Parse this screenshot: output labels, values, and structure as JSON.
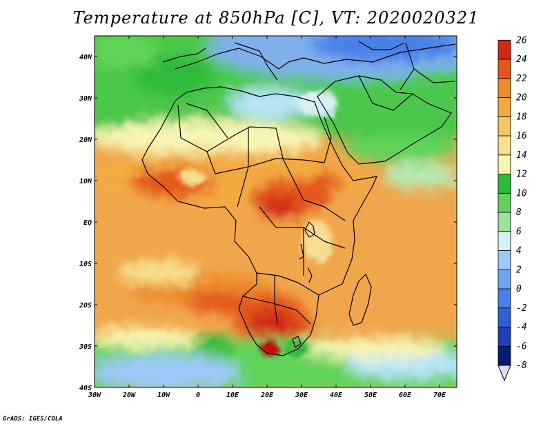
{
  "title": "Temperature at 850hPa [C], VT: 2020020321",
  "footer": "GrADS: IGES/COLA",
  "map": {
    "lon_range": [
      -30,
      75
    ],
    "lat_range": [
      -40,
      45
    ],
    "x_ticks": [
      {
        "value": -30,
        "label": "30W"
      },
      {
        "value": -20,
        "label": "20W"
      },
      {
        "value": -10,
        "label": "10W"
      },
      {
        "value": 0,
        "label": "0"
      },
      {
        "value": 10,
        "label": "10E"
      },
      {
        "value": 20,
        "label": "20E"
      },
      {
        "value": 30,
        "label": "30E"
      },
      {
        "value": 40,
        "label": "40E"
      },
      {
        "value": 50,
        "label": "50E"
      },
      {
        "value": 60,
        "label": "60E"
      },
      {
        "value": 70,
        "label": "70E"
      }
    ],
    "y_ticks": [
      {
        "value": 40,
        "label": "40N"
      },
      {
        "value": 30,
        "label": "30N"
      },
      {
        "value": 20,
        "label": "20N"
      },
      {
        "value": 10,
        "label": "10N"
      },
      {
        "value": 0,
        "label": "EQ"
      },
      {
        "value": -10,
        "label": "10S"
      },
      {
        "value": -20,
        "label": "20S"
      },
      {
        "value": -30,
        "label": "30S"
      },
      {
        "value": -40,
        "label": "40S"
      }
    ]
  },
  "colorbar": {
    "levels": [
      -8,
      -6,
      -4,
      -2,
      0,
      2,
      4,
      6,
      8,
      10,
      12,
      14,
      16,
      18,
      20,
      22,
      24,
      26
    ],
    "labels": [
      "-8",
      "-6",
      "-4",
      "-2",
      "0",
      "2",
      "4",
      "6",
      "8",
      "10",
      "12",
      "14",
      "16",
      "18",
      "20",
      "22",
      "24",
      "26"
    ],
    "colors": [
      "#0a1a78",
      "#1c3fb6",
      "#2f5fd6",
      "#4a80e8",
      "#6fa4f2",
      "#9ec8f8",
      "#d8f0f6",
      "#9be39a",
      "#61d35a",
      "#2fba3a",
      "#f8f5b4",
      "#f7e08a",
      "#f4c560",
      "#f2aa3f",
      "#ed8a2a",
      "#e3561c",
      "#d22812"
    ],
    "under_color": "#e2dcf4",
    "over_color": "#c01010"
  }
}
